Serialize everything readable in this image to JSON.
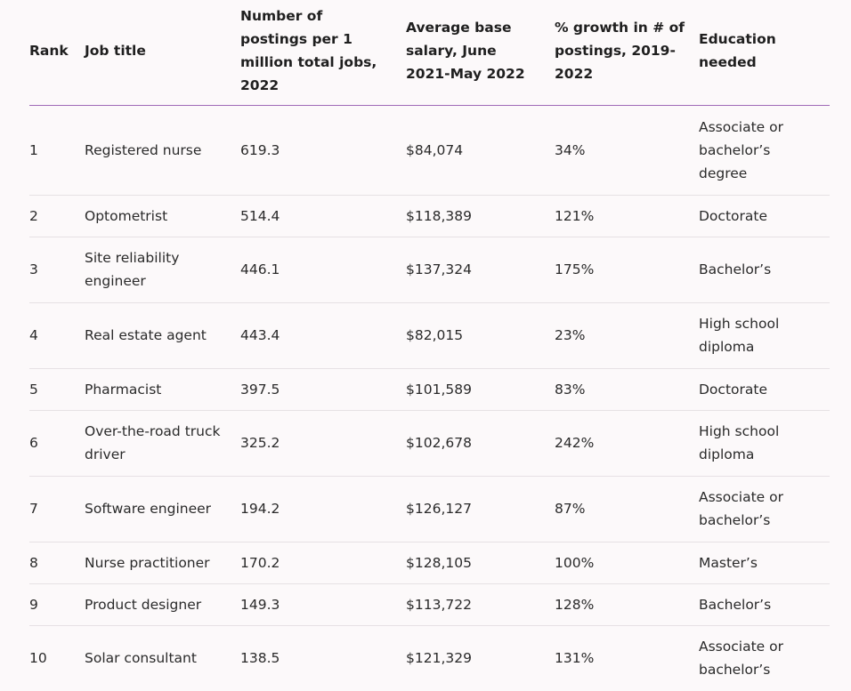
{
  "headers": {
    "rank": "Rank",
    "title": "Job title",
    "postings": "Number of postings per 1 million total jobs, 2022",
    "salary": "Average base salary, June 2021-May 2022",
    "growth": "% growth in # of postings, 2019-2022",
    "education": "Education needed"
  },
  "rows": [
    {
      "rank": "1",
      "title": "Registered nurse",
      "postings": "619.3",
      "salary": "$84,074",
      "growth": "34%",
      "education": "Associate or bachelor’s degree"
    },
    {
      "rank": "2",
      "title": "Optometrist",
      "postings": "514.4",
      "salary": "$118,389",
      "growth": "121%",
      "education": "Doctorate"
    },
    {
      "rank": "3",
      "title": "Site reliability engineer",
      "postings": "446.1",
      "salary": "$137,324",
      "growth": "175%",
      "education": "Bachelor’s"
    },
    {
      "rank": "4",
      "title": "Real estate agent",
      "postings": "443.4",
      "salary": "$82,015",
      "growth": "23%",
      "education": "High school diploma"
    },
    {
      "rank": "5",
      "title": "Pharmacist",
      "postings": "397.5",
      "salary": "$101,589",
      "growth": "83%",
      "education": "Doctorate"
    },
    {
      "rank": "6",
      "title": "Over-the-road truck driver",
      "postings": "325.2",
      "salary": "$102,678",
      "growth": "242%",
      "education": "High school diploma"
    },
    {
      "rank": "7",
      "title": "Software engineer",
      "postings": "194.2",
      "salary": "$126,127",
      "growth": "87%",
      "education": "Associate or bachelor’s"
    },
    {
      "rank": "8",
      "title": "Nurse practitioner",
      "postings": "170.2",
      "salary": "$128,105",
      "growth": "100%",
      "education": "Master’s"
    },
    {
      "rank": "9",
      "title": "Product designer",
      "postings": "149.3",
      "salary": "$113,722",
      "growth": "128%",
      "education": "Bachelor’s"
    },
    {
      "rank": "10",
      "title": "Solar consultant",
      "postings": "138.5",
      "salary": "$121,329",
      "growth": "131%",
      "education": "Associate or bachelor’s"
    }
  ],
  "colors": {
    "header_rule": "#a06bb8",
    "row_rule": "#e6e1e4",
    "background": "#fcf9fa"
  }
}
